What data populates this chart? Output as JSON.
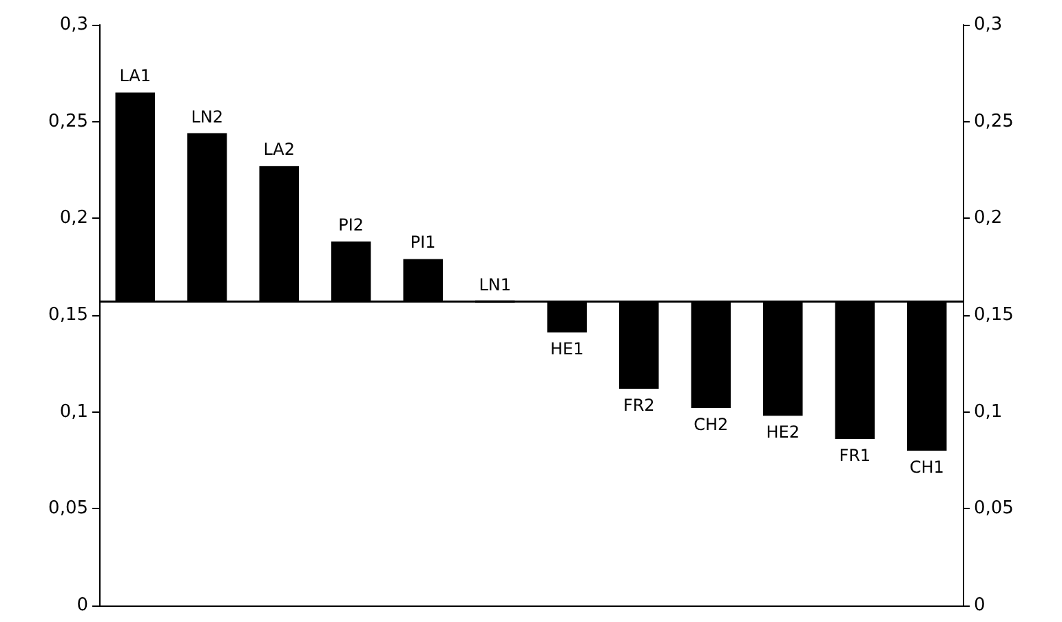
{
  "chart_data": {
    "type": "bar",
    "categories": [
      "LA1",
      "LN2",
      "LA2",
      "PI2",
      "PI1",
      "LN1",
      "HE1",
      "FR2",
      "CH2",
      "HE2",
      "FR1",
      "CH1"
    ],
    "values": [
      0.108,
      0.087,
      0.07,
      0.031,
      0.022,
      0,
      -0.016,
      -0.045,
      -0.055,
      -0.059,
      -0.071,
      -0.077
    ],
    "base": [
      0.157,
      0.157,
      0.157,
      0.157,
      0.157,
      0.157,
      0.157,
      0.157,
      0.157,
      0.157,
      0.157,
      0.157
    ],
    "color": "#000000",
    "ylim": [
      0,
      0.3
    ],
    "yticks": [
      {
        "value": 0,
        "label": "0"
      },
      {
        "value": 0.05,
        "label": "0,05"
      },
      {
        "value": 0.1,
        "label": "0,1"
      },
      {
        "value": 0.15,
        "label": "0,15"
      },
      {
        "value": 0.2,
        "label": "0,2"
      },
      {
        "value": 0.25,
        "label": "0,25"
      },
      {
        "value": 0.3,
        "label": "0,3"
      }
    ],
    "ref_lines": [
      {
        "axis": "y",
        "value": 0.157,
        "color": "#000000"
      }
    ],
    "grid": false,
    "tick_labels": "y"
  }
}
